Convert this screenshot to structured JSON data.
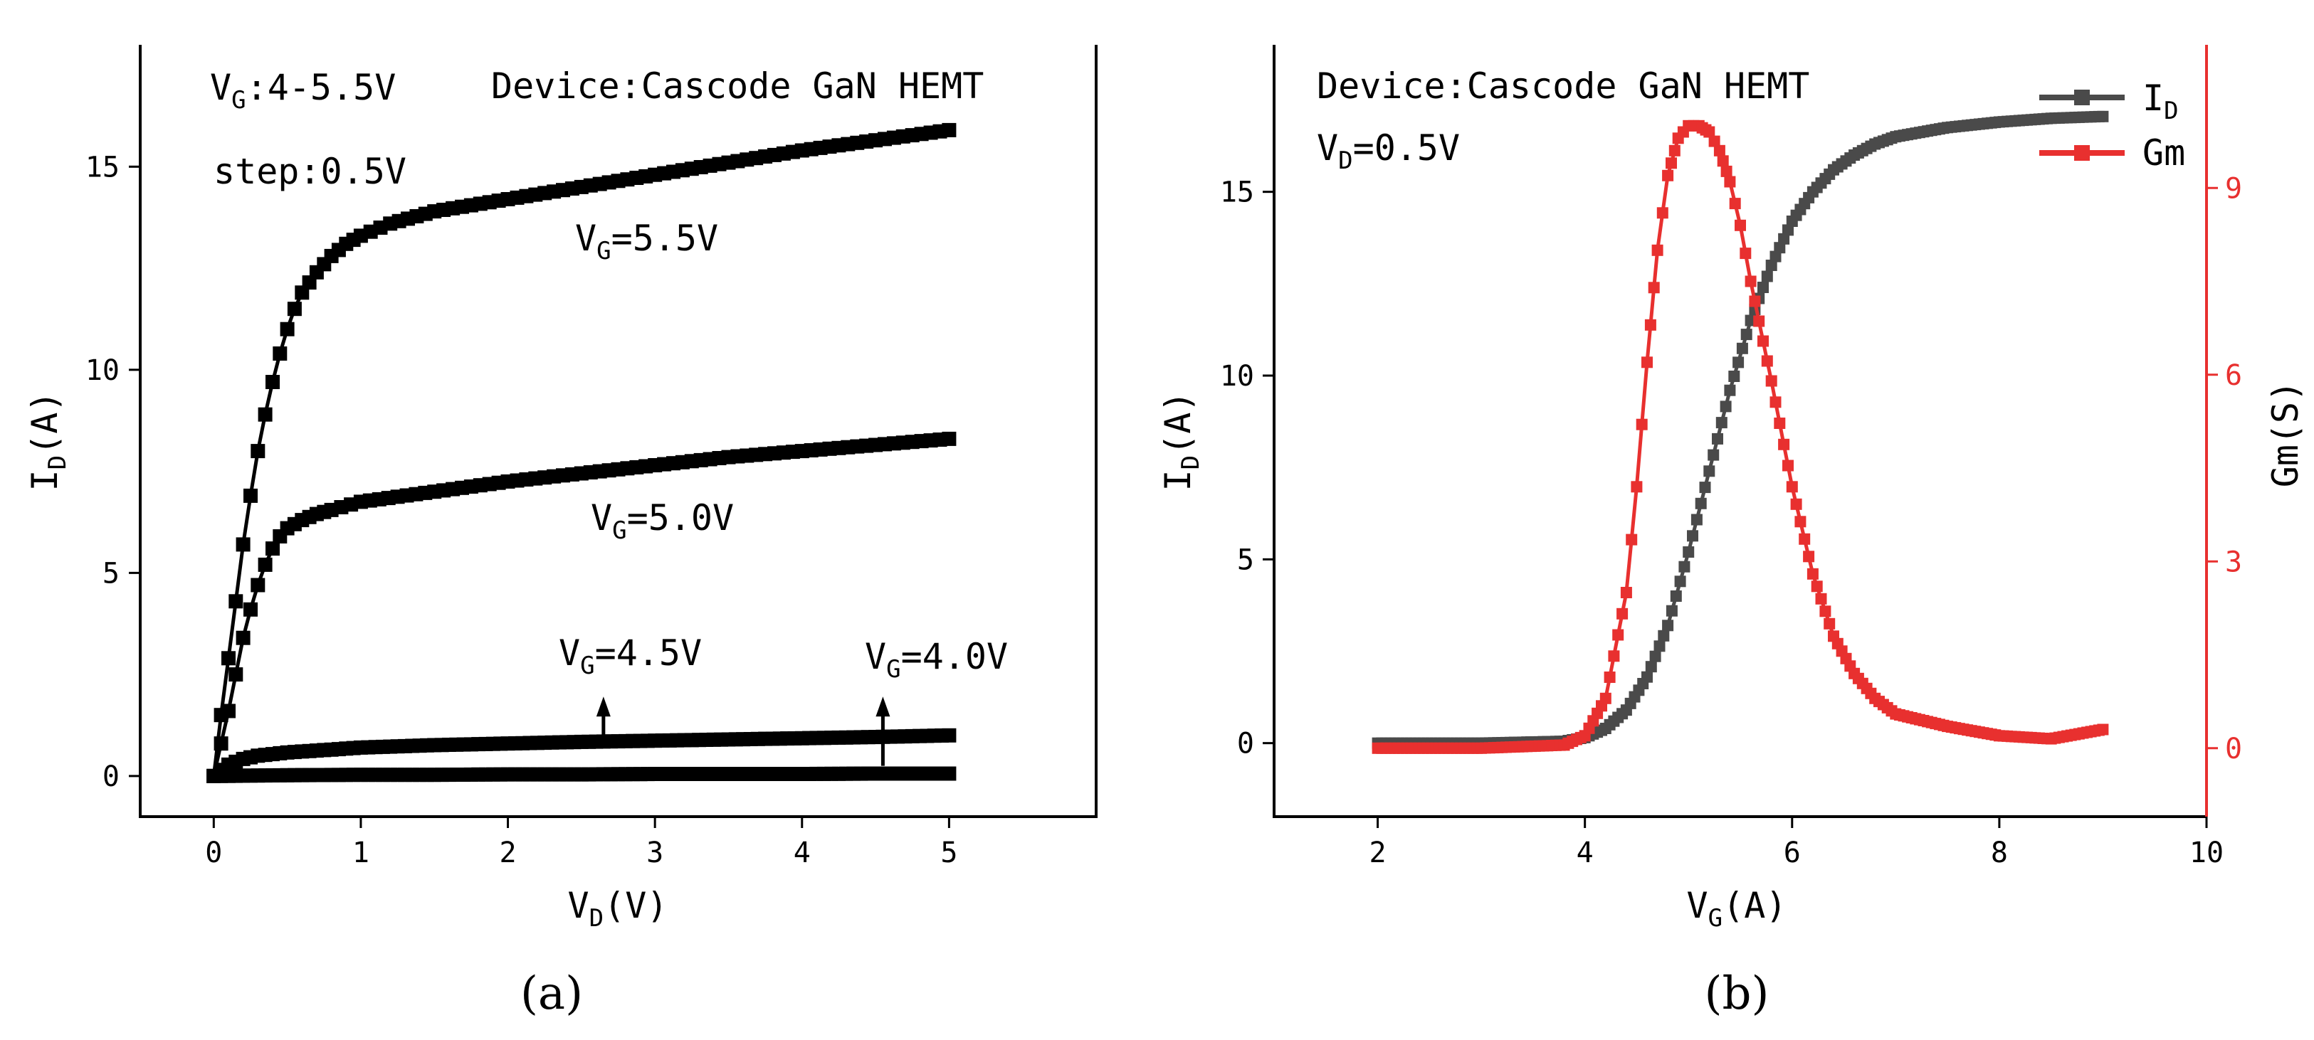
{
  "chart_data": [
    {
      "panel_label": "(a)",
      "type": "scatter",
      "xlabel": {
        "main": "V",
        "sub": "D",
        "rest": "(V)"
      },
      "ylabel": {
        "main": "I",
        "sub": "D",
        "rest": "(A)"
      },
      "xlim": [
        -0.5,
        6.0
      ],
      "ylim": [
        -1.0,
        18.0
      ],
      "xticks": [
        0,
        1,
        2,
        3,
        4,
        5
      ],
      "yticks": [
        0,
        5,
        10,
        15
      ],
      "annotations": {
        "vg_range": {
          "main": "V",
          "sub": "G",
          "rest": ":4-5.5V"
        },
        "device": "Device:Cascode GaN HEMT",
        "step": "step:0.5V",
        "vg55": {
          "main": "V",
          "sub": "G",
          "rest": "=5.5V"
        },
        "vg50": {
          "main": "V",
          "sub": "G",
          "rest": "=5.0V"
        },
        "vg45": {
          "main": "V",
          "sub": "G",
          "rest": "=4.5V"
        },
        "vg40": {
          "main": "V",
          "sub": "G",
          "rest": "=4.0V"
        }
      },
      "arrows": [
        {
          "x": 2.65,
          "y_from": 0.95,
          "y_to": 1.85
        },
        {
          "x": 4.55,
          "y_from": 0.25,
          "y_to": 1.85
        }
      ],
      "series": [
        {
          "vg": "5.5V",
          "x": [
            0,
            0.05,
            0.1,
            0.15,
            0.2,
            0.25,
            0.3,
            0.35,
            0.4,
            0.45,
            0.5,
            0.55,
            0.6,
            0.7,
            0.8,
            0.9,
            1.0,
            1.2,
            1.5,
            2.0,
            2.5,
            3.0,
            3.5,
            4.0,
            4.5,
            5.0
          ],
          "y": [
            0,
            1.5,
            2.9,
            4.3,
            5.7,
            6.9,
            8.0,
            8.9,
            9.7,
            10.4,
            11.0,
            11.5,
            11.9,
            12.4,
            12.8,
            13.1,
            13.3,
            13.6,
            13.9,
            14.2,
            14.5,
            14.8,
            15.1,
            15.4,
            15.65,
            15.9
          ]
        },
        {
          "vg": "5.0V",
          "x": [
            0,
            0.05,
            0.1,
            0.15,
            0.2,
            0.25,
            0.3,
            0.35,
            0.4,
            0.45,
            0.5,
            0.6,
            0.7,
            0.8,
            1.0,
            1.5,
            2.0,
            2.5,
            3.0,
            3.5,
            4.0,
            4.5,
            5.0
          ],
          "y": [
            0,
            0.8,
            1.6,
            2.5,
            3.4,
            4.1,
            4.7,
            5.2,
            5.6,
            5.9,
            6.1,
            6.3,
            6.45,
            6.55,
            6.75,
            7.0,
            7.25,
            7.45,
            7.65,
            7.85,
            8.0,
            8.15,
            8.3
          ]
        },
        {
          "vg": "4.5V",
          "x": [
            0,
            0.05,
            0.1,
            0.2,
            0.3,
            0.5,
            0.8,
            1.0,
            1.5,
            2.0,
            2.5,
            3.0,
            3.5,
            4.0,
            4.5,
            5.0
          ],
          "y": [
            0,
            0.15,
            0.28,
            0.42,
            0.5,
            0.58,
            0.65,
            0.7,
            0.76,
            0.8,
            0.84,
            0.87,
            0.9,
            0.93,
            0.96,
            1.0
          ]
        },
        {
          "vg": "4.0V",
          "x": [
            0,
            0.5,
            1.0,
            1.5,
            2.0,
            2.5,
            3.0,
            3.5,
            4.0,
            4.5,
            5.0
          ],
          "y": [
            0,
            0.02,
            0.03,
            0.03,
            0.04,
            0.04,
            0.05,
            0.05,
            0.05,
            0.06,
            0.06
          ]
        }
      ]
    },
    {
      "panel_label": "(b)",
      "type": "scatter",
      "xlabel": {
        "main": "V",
        "sub": "G",
        "rest": "(A)"
      },
      "ylabel_left": {
        "main": "I",
        "sub": "D",
        "rest": "(A)"
      },
      "ylabel_right": "Gm(S)",
      "xlim": [
        1.0,
        10.0
      ],
      "ylim_left": [
        -2.0,
        19.0
      ],
      "ylim_right": [
        -1.1,
        11.3
      ],
      "xticks": [
        2,
        4,
        6,
        8,
        10
      ],
      "yticks_left": [
        0,
        5,
        10,
        15
      ],
      "yticks_right": [
        0,
        3,
        6,
        9
      ],
      "annotations": {
        "device": "Device:Cascode GaN HEMT",
        "vd": {
          "main": "V",
          "sub": "D",
          "rest": "=0.5V"
        }
      },
      "legend": [
        {
          "main": "I",
          "sub": "D",
          "color": "#4a4a4a"
        },
        {
          "main": "Gm",
          "sub": "",
          "color": "#e8302f"
        }
      ],
      "colors": {
        "id": "#4a4a4a",
        "gm": "#e8302f",
        "right_axis": "#e8302f"
      },
      "series": [
        {
          "name": "ID",
          "axis": "left",
          "x": [
            2.0,
            3.0,
            3.8,
            4.0,
            4.2,
            4.4,
            4.6,
            4.8,
            5.0,
            5.2,
            5.4,
            5.6,
            5.8,
            6.0,
            6.2,
            6.4,
            6.6,
            6.8,
            7.0,
            7.5,
            8.0,
            8.5,
            9.0
          ],
          "y": [
            0.0,
            0.0,
            0.05,
            0.15,
            0.4,
            0.9,
            1.8,
            3.2,
            5.2,
            7.4,
            9.6,
            11.5,
            13.0,
            14.2,
            15.0,
            15.6,
            16.0,
            16.3,
            16.5,
            16.75,
            16.9,
            17.0,
            17.05
          ]
        },
        {
          "name": "Gm",
          "axis": "right",
          "x": [
            2.0,
            3.0,
            3.8,
            4.0,
            4.2,
            4.4,
            4.5,
            4.6,
            4.7,
            4.8,
            4.9,
            5.0,
            5.1,
            5.2,
            5.3,
            5.4,
            5.5,
            5.6,
            5.8,
            6.0,
            6.2,
            6.4,
            6.6,
            6.8,
            7.0,
            7.5,
            8.0,
            8.5,
            9.0
          ],
          "y": [
            0.0,
            0.0,
            0.05,
            0.2,
            0.8,
            2.5,
            4.2,
            6.2,
            8.0,
            9.2,
            9.8,
            10.0,
            10.0,
            9.9,
            9.6,
            9.1,
            8.4,
            7.5,
            5.9,
            4.2,
            2.8,
            1.8,
            1.2,
            0.8,
            0.55,
            0.35,
            0.2,
            0.15,
            0.3
          ]
        }
      ]
    }
  ]
}
